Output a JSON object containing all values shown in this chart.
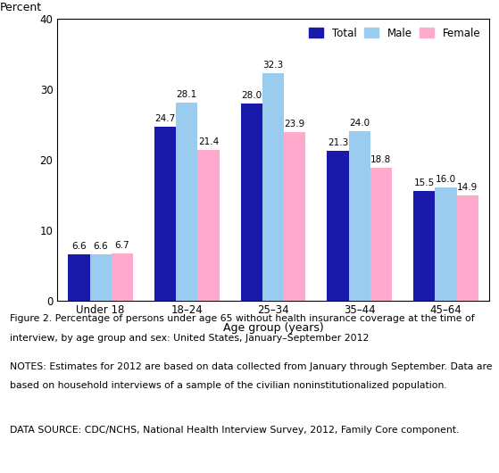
{
  "categories": [
    "Under 18",
    "18–24",
    "25–34",
    "35–44",
    "45–64"
  ],
  "total": [
    6.6,
    24.7,
    28.0,
    21.3,
    15.5
  ],
  "male": [
    6.6,
    28.1,
    32.3,
    24.0,
    16.0
  ],
  "female": [
    6.7,
    21.4,
    23.9,
    18.8,
    14.9
  ],
  "color_total": "#1a1aaa",
  "color_male": "#99ccee",
  "color_female": "#ffaacc",
  "xlabel": "Age group (years)",
  "ylim": [
    0,
    40
  ],
  "yticks": [
    0,
    10,
    20,
    30,
    40
  ],
  "legend_labels": [
    "Total",
    "Male",
    "Female"
  ],
  "bar_width": 0.25,
  "figure2_line1": "Figure 2. Percentage of persons under age 65 without health insurance coverage at the time of",
  "figure2_line2": "interview, by age group and sex: United States, January–September 2012",
  "notes_line1": "NOTES: Estimates for 2012 are based on data collected from January through September. Data are",
  "notes_line2": "based on household interviews of a sample of the civilian noninstitutionalized population.",
  "source_text": "DATA SOURCE: CDC/NCHS, National Health Interview Survey, 2012, Family Core component."
}
